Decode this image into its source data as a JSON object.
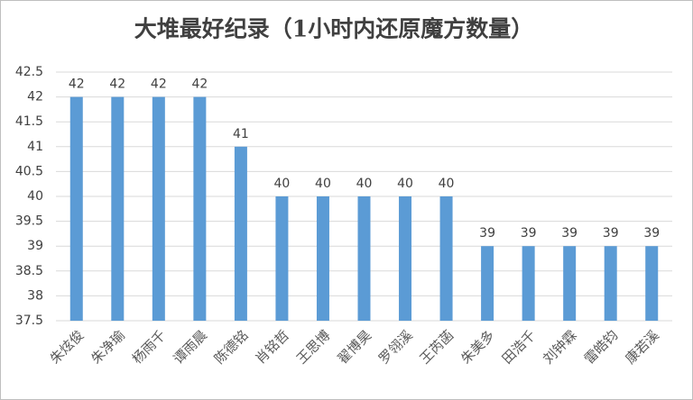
{
  "chart_data": {
    "type": "bar",
    "title": "大堆最好纪录（1小时内还原魔方数量）",
    "categories": [
      "朱炫俊",
      "朱净瑜",
      "杨雨千",
      "谭雨晨",
      "陈德铭",
      "肖铭哲",
      "王思博",
      "翟博昊",
      "罗翎溪",
      "王芮菡",
      "朱美多",
      "田浩千",
      "刘钟霖",
      "雷皓钧",
      "康若溪"
    ],
    "values": [
      42,
      42,
      42,
      42,
      41,
      40,
      40,
      40,
      40,
      40,
      39,
      39,
      39,
      39,
      39
    ],
    "color": "#5b9bd5",
    "ylim": [
      37.5,
      42.5
    ],
    "yticks": [
      37.5,
      38,
      38.5,
      39,
      39.5,
      40,
      40.5,
      41,
      41.5,
      42,
      42.5
    ],
    "grid": true
  }
}
